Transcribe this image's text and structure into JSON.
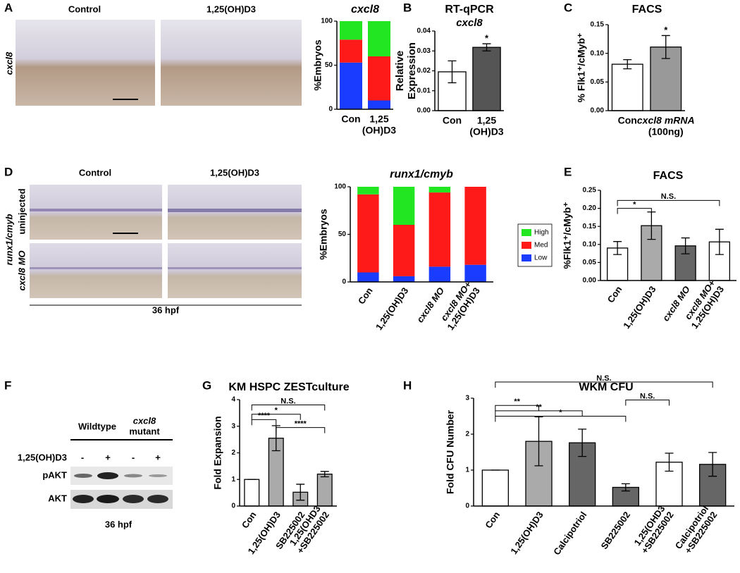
{
  "panel_labels": [
    "A",
    "B",
    "C",
    "D",
    "E",
    "F",
    "G",
    "H"
  ],
  "panel_a": {
    "columns": [
      "Control",
      "1,25(OH)D3"
    ],
    "row_label": "cxcl8"
  },
  "panel_d": {
    "columns": [
      "Control",
      "1,25(OH)D3"
    ],
    "row_group": "runx1/cmyb",
    "rows": [
      "uninjected",
      "cxcl8 MO"
    ],
    "footer": "36 hpf"
  },
  "panel_f": {
    "group_1": "Wildtype",
    "group_2": [
      "cxcl8",
      "mutant"
    ],
    "treatment": "1,25(OH)D3",
    "signs": [
      "-",
      "+",
      "-",
      "+"
    ],
    "bands": [
      "pAKT",
      "AKT"
    ],
    "footer": "36 hpf"
  },
  "chart_data": [
    {
      "type": "stacked_bar",
      "title": "cxcl8",
      "ylabel": "%Embryos",
      "categories": [
        [
          "Con"
        ],
        [
          "1,25",
          "(OH)D3"
        ]
      ],
      "series": [
        {
          "color": "#1a3cff",
          "values": [
            53,
            10
          ]
        },
        {
          "color": "#ff1a1a",
          "values": [
            26,
            50
          ]
        },
        {
          "color": "#22e622",
          "values": [
            21,
            40
          ]
        }
      ],
      "ylim": [
        0,
        100
      ],
      "yticks": [
        0,
        50,
        100
      ]
    },
    {
      "type": "bar",
      "title": "RT-qPCR",
      "subtitle": "cxcl8",
      "ylabel": [
        "Relative",
        "Expression"
      ],
      "categories": [
        [
          "Con"
        ],
        [
          "1,25",
          "(OH)D3"
        ]
      ],
      "values": [
        0.0195,
        0.0318
      ],
      "errors": [
        0.0055,
        0.0018
      ],
      "colors": [
        "#ffffff",
        "#555555"
      ],
      "ylim": [
        0,
        0.04
      ],
      "yticks": [
        {
          "value": 0,
          "label": "0.00"
        },
        0.01,
        0.02,
        0.03,
        0.04
      ],
      "annotations": [
        "*"
      ]
    },
    {
      "type": "bar",
      "title": "FACS",
      "ylabel": "% Flk1⁺/cMyb⁺",
      "categories": [
        [
          "Con"
        ],
        [
          "cxcl8 mRNA",
          "(100ng)"
        ]
      ],
      "values": [
        0.081,
        0.111
      ],
      "errors": [
        0.008,
        0.02
      ],
      "colors": [
        "#ffffff",
        "#999999"
      ],
      "ylim": [
        0,
        0.15
      ],
      "yticks": [
        {
          "value": 0,
          "label": "0.00"
        },
        0.05,
        {
          "value": 0.1,
          "label": "0.10"
        },
        0.15
      ],
      "annotations": [
        "*"
      ]
    },
    {
      "type": "stacked_bar",
      "title": "runx1/cmyb",
      "ylabel": "%Embryos",
      "categories": [
        [
          "Con"
        ],
        [
          "1,25(OH)D3"
        ],
        [
          "cxcl8 MO"
        ],
        [
          "cxcl8 MO+",
          "1,25(OH)D3"
        ]
      ],
      "series": [
        {
          "name": "Low",
          "color": "#1a3cff",
          "values": [
            10,
            6,
            16,
            18
          ]
        },
        {
          "name": "Med",
          "color": "#ff1a1a",
          "values": [
            82,
            54,
            78,
            82
          ]
        },
        {
          "name": "High",
          "color": "#22e622",
          "values": [
            8,
            40,
            6,
            0
          ]
        }
      ],
      "ylim": [
        0,
        100
      ],
      "yticks": [
        0,
        50,
        100
      ],
      "legend": "right"
    },
    {
      "type": "bar",
      "title": "FACS",
      "ylabel": "%Flk1⁺/cMyb⁺",
      "categories": [
        [
          "Con"
        ],
        [
          "1,25(OH)D3"
        ],
        [
          "cxcl8 MO"
        ],
        [
          "cxcl8 MO+",
          "1,25(OH)D3"
        ]
      ],
      "values": [
        0.09,
        0.152,
        0.096,
        0.107
      ],
      "errors": [
        0.018,
        0.038,
        0.022,
        0.035
      ],
      "colors": [
        "#ffffff",
        "#aaaaaa",
        "#666666",
        "#ffffff"
      ],
      "ylim": [
        0,
        0.25
      ],
      "yticks": [
        {
          "value": 0,
          "label": "0.00"
        },
        0.05,
        {
          "value": 0.1,
          "label": "0.10"
        },
        0.15,
        {
          "value": 0.2,
          "label": "0.20"
        },
        0.25
      ],
      "annotations": [
        "*",
        "N.S."
      ]
    },
    {
      "type": "bar",
      "title": "KM HSPC ZESTculture",
      "ylabel": "Fold Expansion",
      "categories": [
        [
          "Con"
        ],
        [
          "1,25(OH)D3"
        ],
        [
          "SB225002"
        ],
        [
          "1,25(OHD3",
          "+SB225002"
        ]
      ],
      "values": [
        1,
        2.55,
        0.52,
        1.2
      ],
      "errors": [
        0,
        0.47,
        0.3,
        0.1
      ],
      "colors": [
        "#ffffff",
        "#aaaaaa",
        "#aaaaaa",
        "#aaaaaa"
      ],
      "ylim": [
        0,
        4
      ],
      "yticks": [
        0,
        1,
        2,
        3,
        4
      ],
      "annotations": [
        "N.S.",
        "****",
        "*",
        "****"
      ]
    },
    {
      "type": "bar",
      "title": "WKM CFU",
      "ylabel": "Fold CFU Number",
      "categories": [
        [
          "Con"
        ],
        [
          "1,25(OH)D3"
        ],
        [
          "Calcipotriol"
        ],
        [
          "SB225002"
        ],
        [
          "1,25(OHD3",
          "+SB225002"
        ],
        [
          "Calcipotriol",
          "+SB225002"
        ]
      ],
      "values": [
        1,
        1.8,
        1.76,
        0.52,
        1.22,
        1.16
      ],
      "errors": [
        0,
        0.68,
        0.38,
        0.1,
        0.25,
        0.33
      ],
      "colors": [
        "#ffffff",
        "#aaaaaa",
        "#666666",
        "#666666",
        "#ffffff",
        "#666666"
      ],
      "ylim": [
        0,
        3
      ],
      "yticks": [
        0,
        1,
        2,
        3
      ],
      "annotations": [
        "N.S.",
        "**",
        "**",
        "*",
        "N.S."
      ]
    }
  ]
}
